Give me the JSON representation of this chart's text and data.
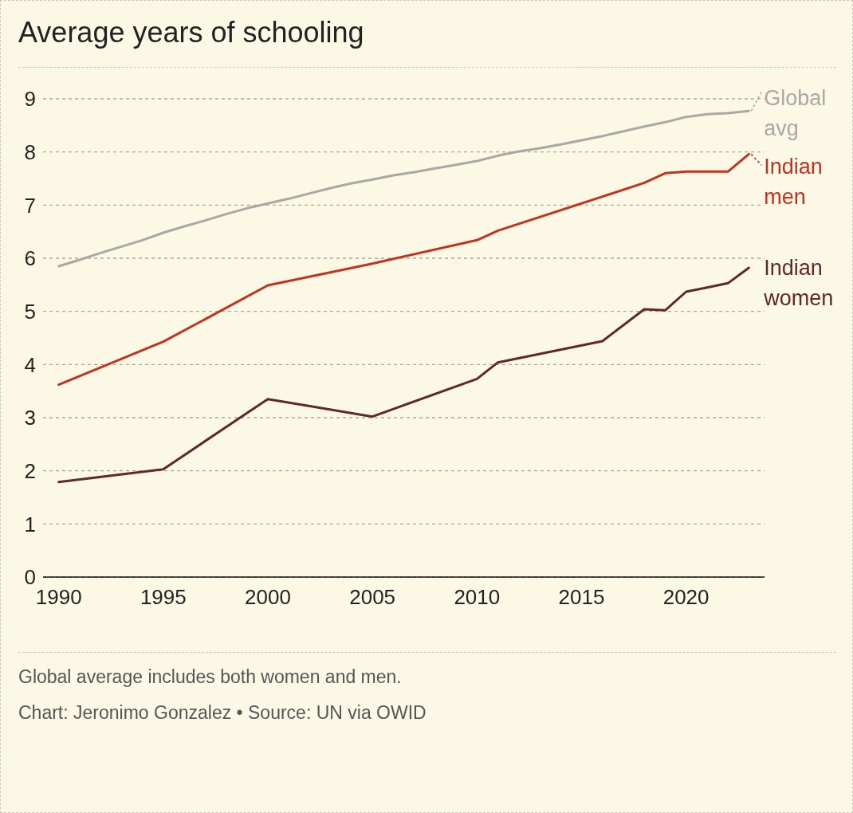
{
  "chart_data": {
    "type": "line",
    "title": "Average years of schooling",
    "annotations": [
      "Global average includes both women and men.",
      "Chart: Jeronimo Gonzalez • Source: UN via OWID"
    ],
    "xlim": [
      1989.25,
      2023.75
    ],
    "xticks": [
      1990,
      1995,
      2000,
      2005,
      2010,
      2015,
      2020
    ],
    "ylim": [
      0,
      9
    ],
    "yticks": [
      0,
      1,
      2,
      3,
      4,
      5,
      6,
      7,
      8,
      9
    ],
    "grid": "y",
    "marker": "none",
    "line_style": "solid",
    "legend": "right",
    "series": [
      {
        "name": "Global avg",
        "color": "#aaa7a5",
        "x": [
          1990,
          1991,
          1992,
          1993,
          1994,
          1995,
          1996,
          1997,
          1998,
          1999,
          2000,
          2001,
          2002,
          2003,
          2004,
          2005,
          2006,
          2007,
          2008,
          2009,
          2010,
          2011,
          2012,
          2013,
          2014,
          2015,
          2016,
          2017,
          2018,
          2019,
          2020,
          2021,
          2022,
          2023
        ],
        "values": [
          5.85,
          5.97,
          6.1,
          6.22,
          6.34,
          6.48,
          6.6,
          6.71,
          6.83,
          6.94,
          7.03,
          7.12,
          7.22,
          7.32,
          7.41,
          7.48,
          7.56,
          7.62,
          7.69,
          7.76,
          7.83,
          7.93,
          8.01,
          8.07,
          8.14,
          8.22,
          8.3,
          8.39,
          8.48,
          8.56,
          8.66,
          8.71,
          8.73,
          8.77
        ]
      },
      {
        "name": "Indian men",
        "color": "#c2331f",
        "x": [
          1990,
          1995,
          2000,
          2005,
          2010,
          2011,
          2016,
          2018,
          2019,
          2020,
          2021,
          2022,
          2023
        ],
        "values": [
          3.62,
          4.43,
          5.49,
          5.9,
          6.34,
          6.52,
          7.16,
          7.42,
          7.6,
          7.63,
          7.63,
          7.63,
          7.96
        ]
      },
      {
        "name": "Indian women",
        "color": "#612828",
        "x": [
          1990,
          1995,
          2000,
          2005,
          2010,
          2011,
          2016,
          2018,
          2019,
          2020,
          2021,
          2022,
          2023
        ],
        "values": [
          1.79,
          2.03,
          3.35,
          3.02,
          3.73,
          4.04,
          4.44,
          5.04,
          5.02,
          5.37,
          5.45,
          5.53,
          5.82
        ]
      }
    ]
  }
}
